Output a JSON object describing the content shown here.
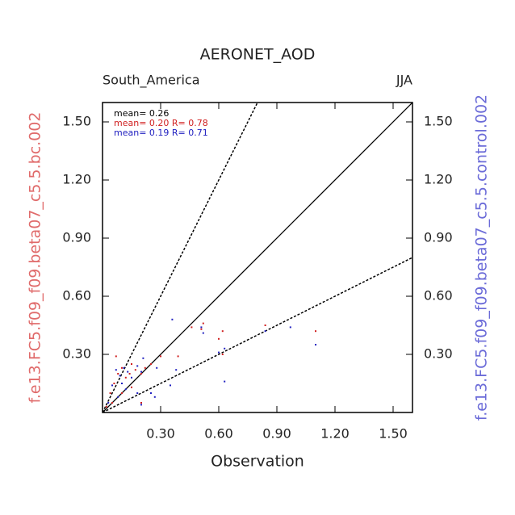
{
  "chart_data": {
    "type": "scatter",
    "title": "AERONET_AOD",
    "subtitle_left": "South_America",
    "subtitle_right": "JJA",
    "x_label": "Observation",
    "y_label": "f.e13.FC5.f09_f09.beta07_c5.5.bc.002",
    "y2_label": "f.e13.FC5.f09_f09.beta07_c5.5.control.002",
    "y_label_color": "#e06b6b",
    "y2_label_color": "#6b6bd8",
    "annotations": [
      {
        "text": "mean= 0.26",
        "color": "#000000"
      },
      {
        "text": "mean= 0.20 R= 0.78",
        "color": "#d02020"
      },
      {
        "text": "mean= 0.19 R= 0.71",
        "color": "#2020c0"
      }
    ],
    "reference_lines": [
      {
        "slope": 1,
        "dashed": false
      },
      {
        "slope": 2,
        "dashed": true
      },
      {
        "slope": 0.5,
        "dashed": true
      }
    ],
    "xlim": [
      0,
      1.6
    ],
    "ylim": [
      0,
      1.6
    ],
    "y2lim": [
      0,
      1.6
    ],
    "xticks": [
      {
        "value": 0.3,
        "label": "0.30"
      },
      {
        "value": 0.6,
        "label": "0.60"
      },
      {
        "value": 0.9,
        "label": "0.90"
      },
      {
        "value": 1.2,
        "label": "1.20"
      },
      {
        "value": 1.5,
        "label": "1.50"
      }
    ],
    "yticks": [
      {
        "value": 0.3,
        "label": "0.30"
      },
      {
        "value": 0.6,
        "label": "0.60"
      },
      {
        "value": 0.9,
        "label": "0.90"
      },
      {
        "value": 1.2,
        "label": "1.20"
      },
      {
        "value": 1.5,
        "label": "1.50"
      }
    ],
    "y2ticks": [
      {
        "value": 0.3,
        "label": "0.30"
      },
      {
        "value": 0.6,
        "label": "0.60"
      },
      {
        "value": 0.9,
        "label": "0.90"
      },
      {
        "value": 1.2,
        "label": "1.20"
      },
      {
        "value": 1.5,
        "label": "1.50"
      }
    ],
    "series": [
      {
        "color": "#d02020",
        "x": [
          0.04,
          0.06,
          0.07,
          0.08,
          0.1,
          0.12,
          0.14,
          0.15,
          0.17,
          0.2,
          0.22,
          0.25,
          0.3,
          0.39,
          0.46,
          0.51,
          0.52,
          0.6,
          0.62,
          0.62,
          0.84,
          1.1,
          0.2,
          0.1,
          0.15,
          0.05,
          0.02
        ],
        "y": [
          0.1,
          0.15,
          0.29,
          0.2,
          0.23,
          0.18,
          0.2,
          0.25,
          0.22,
          0.2,
          0.23,
          0.25,
          0.29,
          0.29,
          0.44,
          0.43,
          0.46,
          0.38,
          0.42,
          0.3,
          0.45,
          0.42,
          0.05,
          0.1,
          0.13,
          0.05,
          0.03
        ]
      },
      {
        "color": "#2020c0",
        "x": [
          0.36,
          0.05,
          0.07,
          0.09,
          0.11,
          0.13,
          0.15,
          0.18,
          0.2,
          0.21,
          0.25,
          0.27,
          0.35,
          0.38,
          0.51,
          0.52,
          0.6,
          0.63,
          0.63,
          0.84,
          0.97,
          1.1,
          0.08,
          0.12,
          0.18,
          0.2,
          0.03,
          0.28,
          0.1
        ],
        "y": [
          0.48,
          0.14,
          0.22,
          0.19,
          0.23,
          0.21,
          0.18,
          0.24,
          0.21,
          0.28,
          0.1,
          0.08,
          0.14,
          0.22,
          0.44,
          0.41,
          0.31,
          0.16,
          0.33,
          0.42,
          0.44,
          0.35,
          0.08,
          0.12,
          0.1,
          0.04,
          0.05,
          0.23,
          0.15
        ]
      }
    ]
  }
}
